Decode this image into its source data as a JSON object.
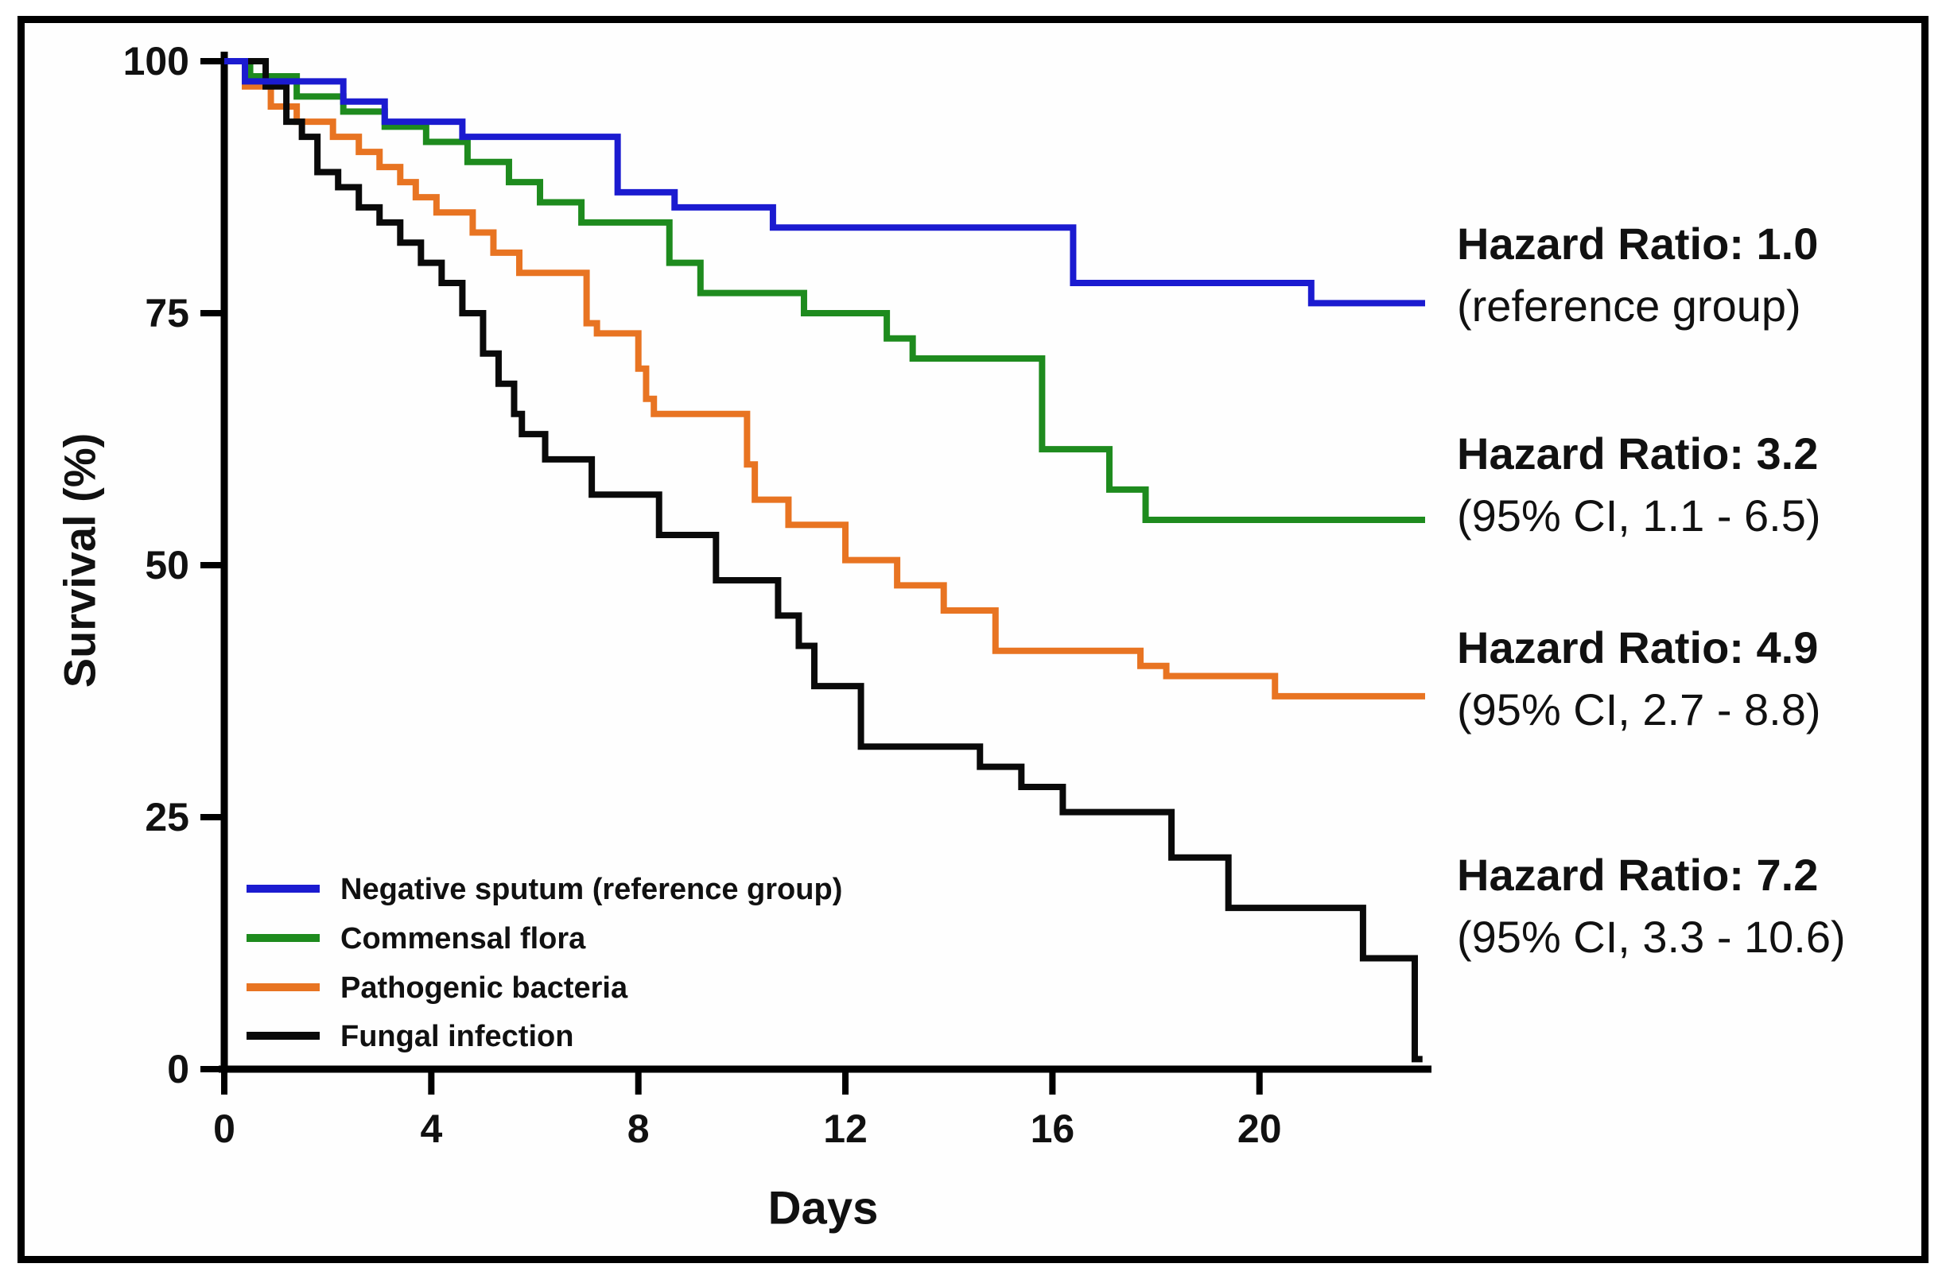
{
  "figure": {
    "xlabel": "Days",
    "ylabel": "Survival (%)"
  },
  "chart_data": {
    "type": "line",
    "subtype": "kaplan-meier-step-curves",
    "title": "",
    "xlabel": "Days",
    "ylabel": "Survival (%)",
    "xlim": [
      0,
      23.2
    ],
    "ylim": [
      0,
      100
    ],
    "x_ticks": [
      0,
      4,
      8,
      12,
      16,
      20
    ],
    "y_ticks": [
      100,
      75,
      50,
      25,
      0
    ],
    "grid": false,
    "legend_position": "inside-bottom-left",
    "axis_color": "#000000",
    "series": [
      {
        "name": "Commensal flora",
        "color": "#1e8b1e",
        "end_day": 23.2,
        "steps": [
          [
            0,
            100
          ],
          [
            0.5,
            98.5
          ],
          [
            1.4,
            96.5
          ],
          [
            2.3,
            95
          ],
          [
            3.1,
            93.5
          ],
          [
            3.9,
            92
          ],
          [
            4.7,
            90
          ],
          [
            5.5,
            88
          ],
          [
            6.1,
            86
          ],
          [
            6.9,
            84
          ],
          [
            8.6,
            80
          ],
          [
            9.2,
            77
          ],
          [
            11.2,
            75
          ],
          [
            12.8,
            72.5
          ],
          [
            13.3,
            70.5
          ],
          [
            15.8,
            61.5
          ],
          [
            17.1,
            57.5
          ],
          [
            17.8,
            54.5
          ]
        ]
      },
      {
        "name": "Pathogenic bacteria",
        "color": "#e87422",
        "end_day": 23.2,
        "steps": [
          [
            0,
            100
          ],
          [
            0.4,
            97.5
          ],
          [
            0.9,
            95.5
          ],
          [
            1.4,
            94
          ],
          [
            2.1,
            92.5
          ],
          [
            2.6,
            91
          ],
          [
            3.0,
            89.5
          ],
          [
            3.4,
            88
          ],
          [
            3.7,
            86.5
          ],
          [
            4.1,
            85
          ],
          [
            4.8,
            83
          ],
          [
            5.2,
            81
          ],
          [
            5.7,
            79
          ],
          [
            7.0,
            74
          ],
          [
            7.2,
            73
          ],
          [
            8.0,
            69.5
          ],
          [
            8.15,
            66.5
          ],
          [
            8.3,
            65
          ],
          [
            10.1,
            60
          ],
          [
            10.25,
            56.5
          ],
          [
            10.9,
            54
          ],
          [
            12.0,
            50.5
          ],
          [
            13.0,
            48
          ],
          [
            13.9,
            45.5
          ],
          [
            14.9,
            41.5
          ],
          [
            17.7,
            40
          ],
          [
            18.2,
            39
          ],
          [
            20.3,
            37
          ]
        ]
      },
      {
        "name": "Fungal infection",
        "color": "#0a0a0a",
        "end_day": 23.15,
        "steps": [
          [
            0,
            100
          ],
          [
            0.8,
            97.5
          ],
          [
            1.2,
            94
          ],
          [
            1.5,
            92.5
          ],
          [
            1.8,
            89
          ],
          [
            2.2,
            87.5
          ],
          [
            2.6,
            85.5
          ],
          [
            3.0,
            84
          ],
          [
            3.4,
            82
          ],
          [
            3.8,
            80
          ],
          [
            4.2,
            78
          ],
          [
            4.6,
            75
          ],
          [
            5.0,
            71
          ],
          [
            5.3,
            68
          ],
          [
            5.6,
            65
          ],
          [
            5.75,
            63
          ],
          [
            6.2,
            60.5
          ],
          [
            7.1,
            57
          ],
          [
            8.4,
            53
          ],
          [
            9.5,
            48.5
          ],
          [
            10.7,
            45
          ],
          [
            11.1,
            42
          ],
          [
            11.4,
            38
          ],
          [
            12.3,
            32
          ],
          [
            14.6,
            30
          ],
          [
            15.4,
            28
          ],
          [
            16.2,
            25.5
          ],
          [
            18.3,
            21
          ],
          [
            19.4,
            16
          ],
          [
            22.0,
            11
          ],
          [
            23.0,
            1
          ]
        ]
      },
      {
        "name": "Negative sputum (reference group)",
        "color": "#1b1bd0",
        "end_day": 23.2,
        "steps": [
          [
            0,
            100
          ],
          [
            0.4,
            98
          ],
          [
            2.3,
            96
          ],
          [
            3.1,
            94
          ],
          [
            4.6,
            92.5
          ],
          [
            7.6,
            87
          ],
          [
            8.7,
            85.5
          ],
          [
            10.6,
            83.5
          ],
          [
            16.4,
            78
          ],
          [
            21.0,
            76
          ]
        ]
      }
    ],
    "legend_order": [
      "Negative sputum (reference group)",
      "Commensal flora",
      "Pathogenic bacteria",
      "Fungal infection"
    ],
    "legend_colors": [
      "#1b1bd0",
      "#1e8b1e",
      "#e87422",
      "#0a0a0a"
    ],
    "annotations": [
      {
        "title": "Hazard Ratio: 1.0",
        "subtitle": "(reference group)"
      },
      {
        "title": "Hazard Ratio: 3.2",
        "subtitle": "(95% CI, 1.1 - 6.5)"
      },
      {
        "title": "Hazard Ratio: 4.9",
        "subtitle": "(95% CI, 2.7 - 8.8)"
      },
      {
        "title": "Hazard Ratio: 7.2",
        "subtitle": "(95% CI, 3.3 - 10.6)"
      }
    ]
  }
}
